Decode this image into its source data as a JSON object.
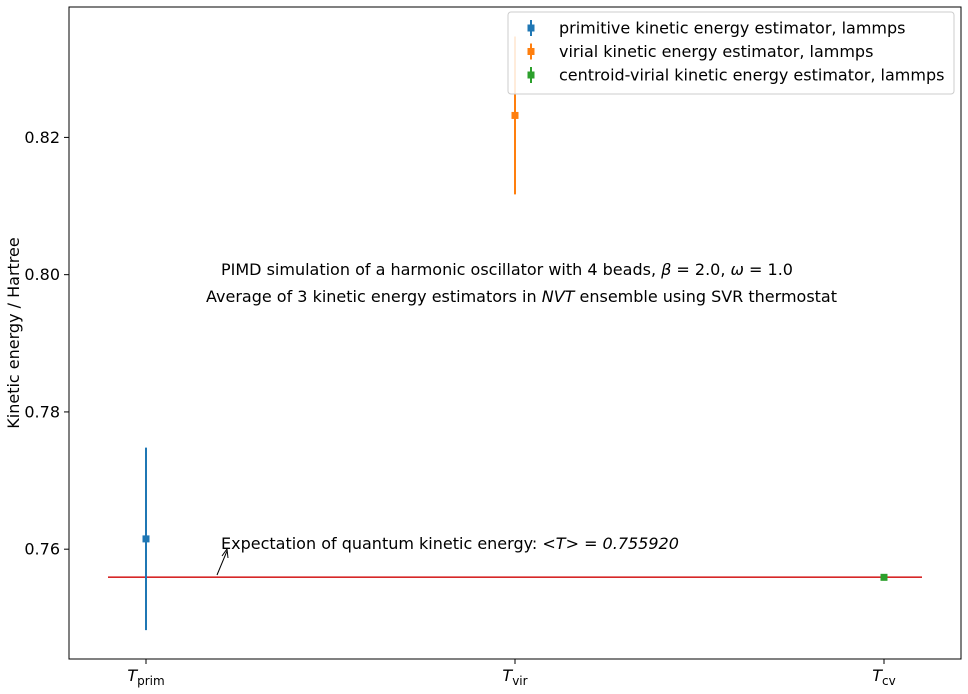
{
  "chart_data": {
    "type": "scatter",
    "title": "",
    "xlabel": "",
    "ylabel": "Kinetic energy / Hartree",
    "categories": [
      "T_prim",
      "T_vir",
      "T_cv"
    ],
    "category_labels": [
      {
        "base": "T",
        "sub": "prim"
      },
      {
        "base": "T",
        "sub": "vir"
      },
      {
        "base": "T",
        "sub": "cv"
      }
    ],
    "ylim": [
      0.744,
      0.839
    ],
    "yticks": [
      "0.76",
      "0.78",
      "0.80",
      "0.82"
    ],
    "series": [
      {
        "name": "primitive kinetic energy estimator, lammps",
        "color": "#1f77b4",
        "x": "T_prim",
        "y": 0.7615,
        "err": 0.0133
      },
      {
        "name": "virial kinetic energy estimator, lammps",
        "color": "#ff7f0e",
        "x": "T_vir",
        "y": 0.8232,
        "err": 0.0115
      },
      {
        "name": "centroid-virial kinetic energy estimator, lammps",
        "color": "#2ca02c",
        "x": "T_cv",
        "y": 0.7559,
        "err": 0.0002
      }
    ],
    "reference_line": {
      "y": 0.75592,
      "color": "#d62728"
    },
    "annotations": {
      "expectation": {
        "prefix": "Expectation of quantum kinetic energy: ",
        "math": "<T> = 0.755920"
      },
      "line1": {
        "text1": "PIMD simulation of a harmonic oscillator with 4 beads, ",
        "beta_sym": "β",
        "beta_val": " = 2.0, ",
        "omega_sym": "ω",
        "omega_val": " = 1.0"
      },
      "line2": {
        "text1": "Average of 3 kinetic energy estimators in ",
        "ensemble": "NVT",
        "text2": " ensemble using SVR thermostat"
      }
    },
    "grid": false,
    "legend_position": "top-right"
  }
}
